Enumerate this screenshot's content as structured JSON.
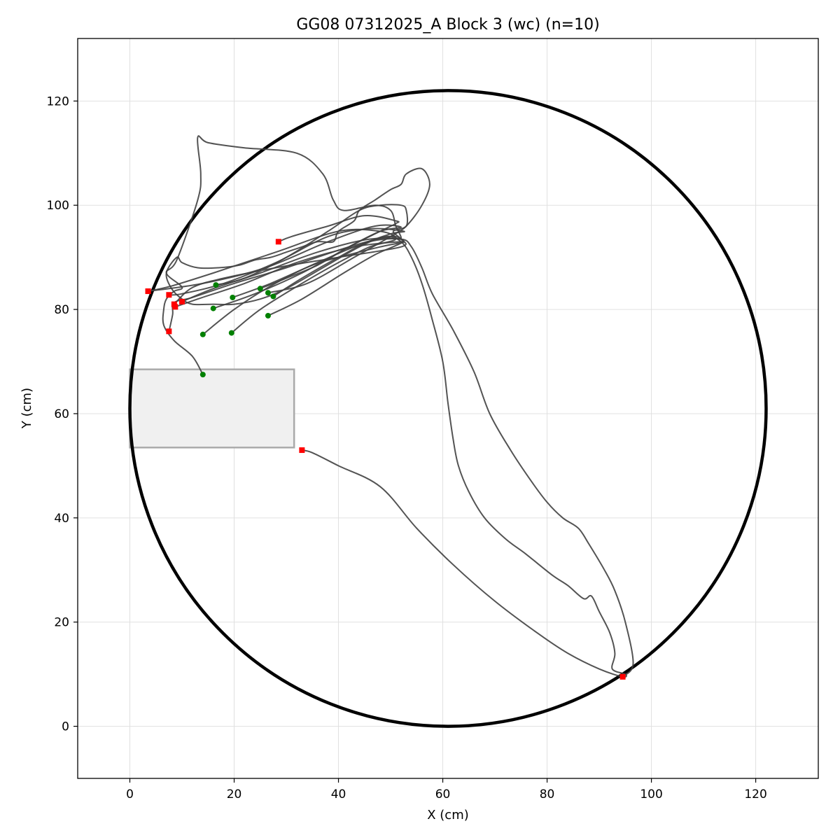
{
  "chart_data": {
    "type": "line",
    "title": "GG08 07312025_A Block 3 (wc) (n=10)",
    "xlabel": "X (cm)",
    "ylabel": "Y (cm)",
    "xlim": [
      -10,
      132
    ],
    "ylim": [
      -10,
      132
    ],
    "xticks": [
      0,
      20,
      40,
      60,
      80,
      100,
      120
    ],
    "yticks": [
      0,
      20,
      40,
      60,
      80,
      100,
      120
    ],
    "grid": true,
    "legend": "none",
    "arena": {
      "center": [
        61,
        61
      ],
      "radius": 61
    },
    "box": {
      "x": [
        0,
        31.5
      ],
      "y": [
        53.5,
        68.5
      ]
    },
    "colors": {
      "trace": "#404040",
      "start": "#008000",
      "end": "#ff0000",
      "arena": "#000000",
      "box_fill": "#f0f0f0",
      "box_edge": "#aaaaaa",
      "grid": "#e0e0e0"
    },
    "series": [
      {
        "start": [
          14,
          67.5
        ],
        "end": [
          7.5,
          75.8
        ],
        "points": [
          [
            14,
            67.5
          ],
          [
            12,
            71
          ],
          [
            8.5,
            74
          ],
          [
            6.5,
            77
          ],
          [
            6.5,
            80
          ],
          [
            7,
            82
          ],
          [
            8.5,
            83.5
          ],
          [
            10,
            84.3
          ],
          [
            7,
            87
          ],
          [
            9,
            89.5
          ],
          [
            13,
            101
          ],
          [
            13.6,
            106
          ],
          [
            13,
            113
          ],
          [
            15,
            112
          ],
          [
            22,
            111
          ],
          [
            32,
            110
          ],
          [
            37,
            106
          ],
          [
            39,
            101
          ],
          [
            41,
            99
          ],
          [
            47,
            100
          ],
          [
            50,
            99
          ],
          [
            51,
            96
          ],
          [
            52,
            93.6
          ],
          [
            50,
            94
          ],
          [
            42,
            92
          ],
          [
            30,
            88
          ],
          [
            20,
            85
          ],
          [
            12,
            82.3
          ],
          [
            8.5,
            81.3
          ],
          [
            8.2,
            79
          ],
          [
            7.5,
            75.8
          ]
        ]
      },
      {
        "start": [
          19.5,
          75.5
        ],
        "end": [
          3.5,
          83.5
        ],
        "points": [
          [
            19.5,
            75.5
          ],
          [
            25,
            80
          ],
          [
            33,
            85
          ],
          [
            40,
            89
          ],
          [
            46,
            92
          ],
          [
            51,
            93.5
          ],
          [
            48,
            95
          ],
          [
            40,
            95
          ],
          [
            28,
            91
          ],
          [
            16,
            87
          ],
          [
            8,
            84.5
          ],
          [
            3.5,
            83.5
          ]
        ]
      },
      {
        "start": [
          26.5,
          78.8
        ],
        "end": [
          10,
          81.5
        ],
        "points": [
          [
            26.5,
            78.8
          ],
          [
            33,
            82
          ],
          [
            41,
            87
          ],
          [
            47,
            90.5
          ],
          [
            52.5,
            93.2
          ],
          [
            46,
            93.5
          ],
          [
            36,
            91
          ],
          [
            25,
            87
          ],
          [
            16,
            84
          ],
          [
            10,
            81.5
          ]
        ]
      },
      {
        "start": [
          14,
          75.2
        ],
        "end": [
          8.7,
          80.5
        ],
        "points": [
          [
            14,
            75.2
          ],
          [
            20,
            80
          ],
          [
            27,
            84.5
          ],
          [
            35,
            88.5
          ],
          [
            42,
            90.5
          ],
          [
            48,
            92
          ],
          [
            52.5,
            93
          ],
          [
            43,
            92
          ],
          [
            32,
            89
          ],
          [
            22,
            85
          ],
          [
            13,
            82
          ],
          [
            8.7,
            80.5
          ]
        ]
      },
      {
        "start": [
          16,
          80.2
        ],
        "end": [
          28.5,
          93
        ],
        "points": [
          [
            16,
            80.2
          ],
          [
            24,
            83
          ],
          [
            33,
            87
          ],
          [
            42,
            92
          ],
          [
            48,
            95
          ],
          [
            51,
            96.5
          ],
          [
            51,
            97
          ],
          [
            45,
            98
          ],
          [
            38,
            96
          ],
          [
            31,
            94
          ],
          [
            28.5,
            93
          ]
        ]
      },
      {
        "start": [
          19.7,
          82.3
        ],
        "end": [
          7.5,
          82.8
        ],
        "points": [
          [
            19.7,
            82.3
          ],
          [
            27,
            85
          ],
          [
            36,
            89
          ],
          [
            43,
            92
          ],
          [
            50,
            94.5
          ],
          [
            52.5,
            95
          ],
          [
            46,
            95.5
          ],
          [
            38,
            94
          ],
          [
            28,
            89
          ],
          [
            18,
            85
          ],
          [
            10,
            83
          ],
          [
            7.5,
            82.8
          ]
        ]
      },
      {
        "start": [
          25,
          84
        ],
        "end": [
          3.5,
          83.5
        ],
        "points": [
          [
            25,
            84
          ],
          [
            30,
            86
          ],
          [
            36,
            88.5
          ],
          [
            42,
            92
          ],
          [
            48,
            95
          ],
          [
            52,
            95.8
          ],
          [
            47,
            96
          ],
          [
            38,
            93
          ],
          [
            26,
            88
          ],
          [
            14,
            85
          ],
          [
            3.5,
            83.5
          ]
        ]
      },
      {
        "start": [
          16.5,
          84.7
        ],
        "end": [
          8.5,
          81
        ],
        "points": [
          [
            16.5,
            84.7
          ],
          [
            22,
            86
          ],
          [
            30,
            90
          ],
          [
            38,
            95
          ],
          [
            44,
            99
          ],
          [
            48,
            100
          ],
          [
            52,
            100
          ],
          [
            53,
            99
          ],
          [
            53,
            96
          ],
          [
            50.5,
            95
          ],
          [
            52,
            93.5
          ],
          [
            52,
            92
          ],
          [
            40,
            90
          ],
          [
            28,
            88
          ],
          [
            18,
            86
          ],
          [
            12,
            84.2
          ],
          [
            8.5,
            81
          ]
        ]
      },
      {
        "start": [
          27.5,
          82.5
        ],
        "end": [
          94.5,
          9.5
        ],
        "points": [
          [
            27.5,
            82.5
          ],
          [
            33,
            86
          ],
          [
            40,
            90
          ],
          [
            46,
            93
          ],
          [
            52,
            93.5
          ],
          [
            54,
            92
          ],
          [
            56,
            88
          ],
          [
            58,
            83
          ],
          [
            62,
            76
          ],
          [
            66,
            68
          ],
          [
            69,
            60
          ],
          [
            73,
            53
          ],
          [
            77,
            47
          ],
          [
            80,
            43
          ],
          [
            83,
            40
          ],
          [
            86,
            38
          ],
          [
            88,
            35
          ],
          [
            91,
            30
          ],
          [
            93,
            26
          ],
          [
            95,
            20
          ],
          [
            96.5,
            12
          ],
          [
            94.5,
            9.5
          ]
        ]
      },
      {
        "start": [
          26.5,
          83.2
        ],
        "end": [
          33,
          53
        ],
        "points": [
          [
            26.5,
            83.2
          ],
          [
            34,
            85
          ],
          [
            43,
            90
          ],
          [
            50,
            94
          ],
          [
            53,
            96
          ],
          [
            56,
            100
          ],
          [
            57.5,
            104
          ],
          [
            56,
            107
          ],
          [
            53,
            106
          ],
          [
            52,
            104
          ],
          [
            50,
            103
          ],
          [
            47,
            101
          ],
          [
            44,
            99
          ],
          [
            43,
            97
          ],
          [
            40,
            95
          ],
          [
            39,
            93
          ],
          [
            36,
            93
          ],
          [
            33,
            92
          ],
          [
            30,
            91
          ],
          [
            27,
            90
          ],
          [
            24,
            89.5
          ],
          [
            21,
            88.5
          ],
          [
            17,
            88
          ],
          [
            13,
            88
          ],
          [
            10,
            89
          ],
          [
            9,
            90
          ],
          [
            7,
            87
          ],
          [
            8,
            84
          ],
          [
            10,
            82
          ],
          [
            12,
            81
          ],
          [
            16,
            81
          ],
          [
            20,
            81
          ],
          [
            25,
            82
          ],
          [
            30,
            84
          ],
          [
            37,
            88
          ],
          [
            44,
            92
          ],
          [
            49,
            94
          ],
          [
            52,
            93
          ],
          [
            54,
            90
          ],
          [
            56,
            85
          ],
          [
            58,
            78
          ],
          [
            60,
            70
          ],
          [
            61,
            62
          ],
          [
            62,
            55
          ],
          [
            63,
            50
          ],
          [
            65,
            45
          ],
          [
            68,
            40
          ],
          [
            72,
            36
          ],
          [
            76,
            33
          ],
          [
            81,
            29
          ],
          [
            84,
            27
          ],
          [
            87,
            24.5
          ],
          [
            88.5,
            25
          ],
          [
            90,
            22
          ],
          [
            92,
            18
          ],
          [
            93,
            14
          ],
          [
            92.5,
            11
          ],
          [
            95,
            10
          ],
          [
            94.5,
            9.5
          ],
          [
            90,
            11
          ],
          [
            84,
            14
          ],
          [
            78,
            18
          ],
          [
            70,
            24
          ],
          [
            62,
            31
          ],
          [
            55,
            38
          ],
          [
            48,
            46
          ],
          [
            40,
            50
          ],
          [
            35,
            52.5
          ],
          [
            33,
            53
          ]
        ]
      }
    ]
  }
}
